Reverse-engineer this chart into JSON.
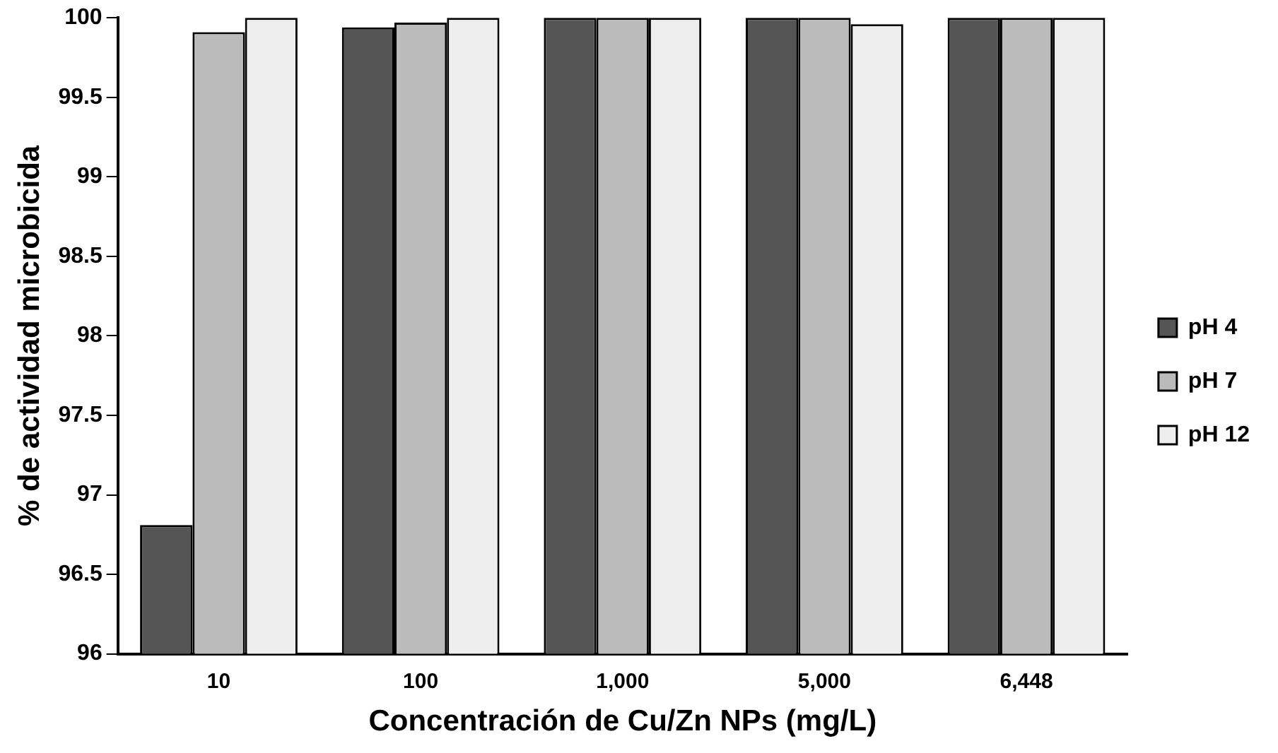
{
  "chart_data": {
    "type": "bar",
    "xlabel": "Concentración de Cu/Zn NPs (mg/L)",
    "ylabel": "% de actividad microbicida",
    "categories": [
      "10",
      "100",
      "1,000",
      "5,000",
      "6,448"
    ],
    "series": [
      {
        "name": "pH 4",
        "color": "#555555",
        "values": [
          96.81,
          99.94,
          100,
          100,
          100
        ]
      },
      {
        "name": "pH 7",
        "color": "#bbbbbb",
        "values": [
          99.91,
          99.97,
          100,
          100,
          100
        ]
      },
      {
        "name": "pH 12",
        "color": "#eeeeee",
        "values": [
          100,
          100,
          100,
          99.96,
          100
        ]
      }
    ],
    "ylim": [
      96,
      100
    ],
    "yticks": [
      96,
      96.5,
      97,
      97.5,
      98,
      98.5,
      99,
      99.5,
      100
    ],
    "grid": false,
    "legend": "right"
  }
}
